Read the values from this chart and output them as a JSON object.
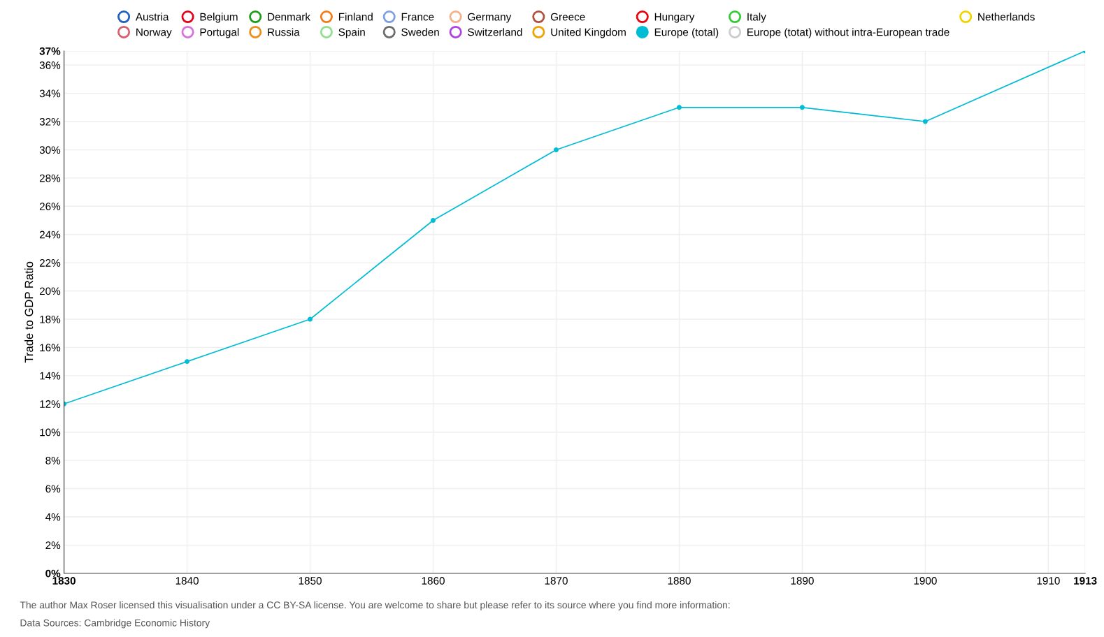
{
  "chart_data": {
    "type": "line",
    "ylabel": "Trade to GDP Ratio",
    "x": [
      1830,
      1840,
      1850,
      1860,
      1870,
      1880,
      1890,
      1900,
      1913
    ],
    "series": [
      {
        "name": "Austria",
        "color": "#1f5fbf",
        "values": [
          null,
          null,
          null,
          null,
          null,
          null,
          null,
          null,
          null
        ]
      },
      {
        "name": "Belgium",
        "color": "#e3001b",
        "values": [
          null,
          null,
          null,
          null,
          null,
          null,
          null,
          null,
          null
        ]
      },
      {
        "name": "Denmark",
        "color": "#1a9e1a",
        "values": [
          null,
          null,
          null,
          null,
          null,
          null,
          null,
          null,
          null
        ]
      },
      {
        "name": "Finland",
        "color": "#f07d1a",
        "values": [
          null,
          null,
          null,
          null,
          null,
          null,
          null,
          null,
          null
        ]
      },
      {
        "name": "France",
        "color": "#7f9fe0",
        "values": [
          null,
          null,
          null,
          null,
          null,
          null,
          null,
          null,
          null
        ]
      },
      {
        "name": "Germany",
        "color": "#f5b08a",
        "values": [
          null,
          null,
          null,
          null,
          null,
          null,
          null,
          null,
          null
        ]
      },
      {
        "name": "Greece",
        "color": "#b0503f",
        "values": [
          null,
          null,
          null,
          null,
          null,
          null,
          null,
          null,
          null
        ]
      },
      {
        "name": "Hungary",
        "color": "#e8000b",
        "values": [
          null,
          null,
          null,
          null,
          null,
          null,
          null,
          null,
          null
        ]
      },
      {
        "name": "Italy",
        "color": "#33cc33",
        "values": [
          null,
          null,
          null,
          null,
          null,
          null,
          null,
          null,
          null
        ]
      },
      {
        "name": "Netherlands",
        "color": "#f0d400",
        "values": [
          null,
          null,
          null,
          null,
          null,
          null,
          null,
          null,
          null
        ]
      },
      {
        "name": "Norway",
        "color": "#d9606a",
        "values": [
          null,
          null,
          null,
          null,
          null,
          null,
          null,
          null,
          null
        ]
      },
      {
        "name": "Portugal",
        "color": "#d970e0",
        "values": [
          null,
          null,
          null,
          null,
          null,
          null,
          null,
          null,
          null
        ]
      },
      {
        "name": "Russia",
        "color": "#f08c1a",
        "values": [
          null,
          null,
          null,
          null,
          null,
          null,
          null,
          null,
          null
        ]
      },
      {
        "name": "Spain",
        "color": "#8fe08f",
        "values": [
          null,
          null,
          null,
          null,
          null,
          null,
          null,
          null,
          null
        ]
      },
      {
        "name": "Sweden",
        "color": "#6b6b6b",
        "values": [
          null,
          null,
          null,
          null,
          null,
          null,
          null,
          null,
          null
        ]
      },
      {
        "name": "Switzerland",
        "color": "#b040e0",
        "values": [
          null,
          null,
          null,
          null,
          null,
          null,
          null,
          null,
          null
        ]
      },
      {
        "name": "United Kingdom",
        "color": "#f0a000",
        "values": [
          null,
          null,
          null,
          null,
          null,
          null,
          null,
          null,
          null
        ]
      },
      {
        "name": "Europe (total)",
        "color": "#00bcd4",
        "values": [
          12,
          15,
          18,
          25,
          30,
          33,
          33,
          32,
          37
        ]
      },
      {
        "name": "Europe (totat) without intra-European trade",
        "color": "#cccccc",
        "values": [
          null,
          null,
          null,
          null,
          null,
          null,
          null,
          null,
          null
        ]
      }
    ],
    "xlim": [
      1830,
      1913
    ],
    "xticks": [
      1830,
      1840,
      1850,
      1860,
      1870,
      1880,
      1890,
      1900,
      1910,
      1913
    ],
    "ylim": [
      0,
      37
    ],
    "yticks": [
      {
        "value": 0,
        "label": "0%"
      },
      {
        "value": 2,
        "label": "2%"
      },
      {
        "value": 4,
        "label": "4%"
      },
      {
        "value": 6,
        "label": "6%"
      },
      {
        "value": 8,
        "label": "8%"
      },
      {
        "value": 10,
        "label": "10%"
      },
      {
        "value": 12,
        "label": "12%"
      },
      {
        "value": 14,
        "label": "14%"
      },
      {
        "value": 16,
        "label": "16%"
      },
      {
        "value": 18,
        "label": "18%"
      },
      {
        "value": 20,
        "label": "20%"
      },
      {
        "value": 22,
        "label": "22%"
      },
      {
        "value": 24,
        "label": "24%"
      },
      {
        "value": 26,
        "label": "26%"
      },
      {
        "value": 28,
        "label": "28%"
      },
      {
        "value": 30,
        "label": "30%"
      },
      {
        "value": 32,
        "label": "32%"
      },
      {
        "value": 34,
        "label": "34%"
      },
      {
        "value": 36,
        "label": "36%"
      },
      {
        "value": 37,
        "label": "37%"
      }
    ],
    "grid": true,
    "legend": "top",
    "marker": "circle",
    "line_style": "solid",
    "annotations": [
      "The author Max Roser licensed this visualisation under a CC BY-SA license. You are welcome to share but please refer to its source where you find more information:",
      "Data Sources: Cambridge Economic History"
    ]
  }
}
